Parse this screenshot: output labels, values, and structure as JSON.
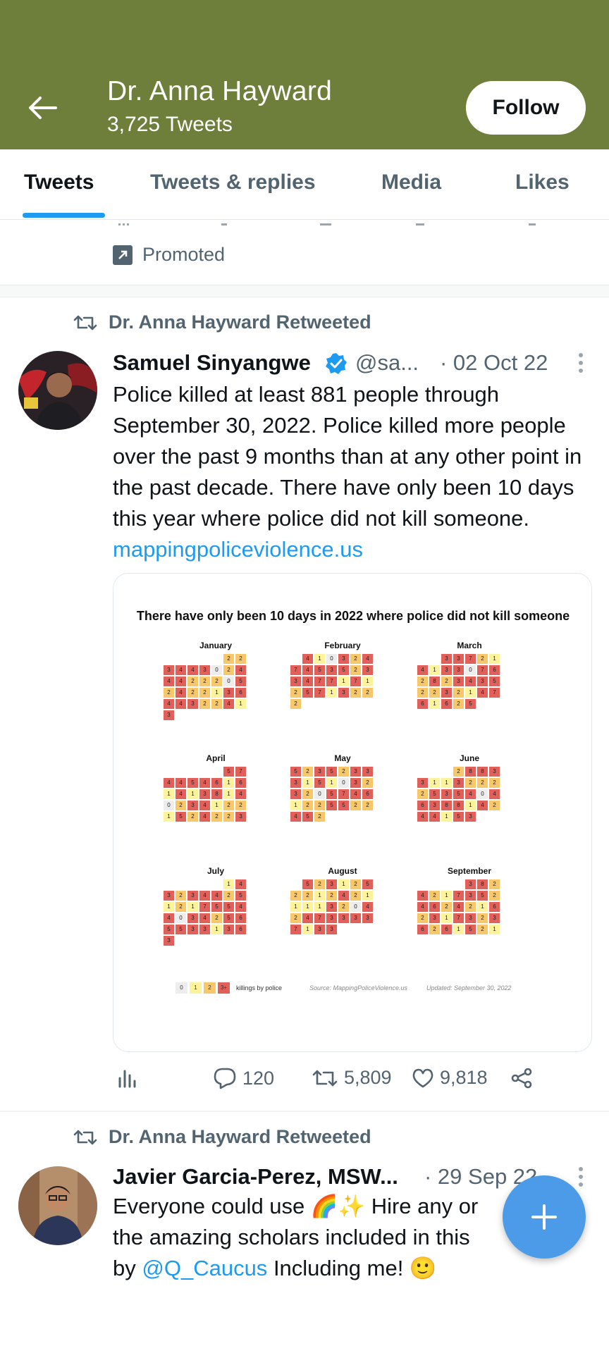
{
  "header": {
    "name": "Dr. Anna Hayward",
    "tweet_count": "3,725 Tweets",
    "follow_label": "Follow"
  },
  "tabs": [
    "Tweets",
    "Tweets & replies",
    "Media",
    "Likes"
  ],
  "promoted_label": "Promoted",
  "tweets": [
    {
      "retweeted_by": "Dr. Anna Hayward Retweeted",
      "name": "Samuel Sinyangwe",
      "verified": true,
      "handle": "@sa...",
      "date": "· 02 Oct 22",
      "text": "Police killed at least 881 people through September 30, 2022. Police killed more people over the past 9 months than at any other point in the past decade. There have only been 10 days this year where police did not kill someone.",
      "link": "mappingpoliceviolence.us",
      "replies": "120",
      "retweets": "5,809",
      "likes": "9,818"
    },
    {
      "retweeted_by": "Dr. Anna Hayward Retweeted",
      "name": "Javier Garcia-Perez, MSW...",
      "date": "· 29 Sep 22",
      "text_part1": "Everyone could use 🌈✨ Hire any or",
      "text_part2": "the amazing scholars included in this",
      "text_part3_prefix": "by",
      "mention": "@Q_Caucus",
      "text_part3_suffix": "Including me! 🙂"
    }
  ],
  "chart_data": {
    "type": "heatmap",
    "title": "There have only been 10 days in 2022 where police did not kill someone",
    "legend": {
      "categories": [
        "0",
        "1",
        "2",
        "3+"
      ],
      "label": "killings by police"
    },
    "source": "Source: MappingPoliceViolence.us",
    "updated": "Updated: September 30, 2022",
    "colors": {
      "0": "#ededed",
      "1": "#fdf39a",
      "2": "#f7c76a",
      "3": "#e2605a"
    },
    "months": [
      {
        "name": "January",
        "start": 5,
        "values": [
          2,
          2,
          3,
          4,
          4,
          3,
          0,
          2,
          4,
          4,
          4,
          2,
          2,
          2,
          0,
          5,
          2,
          4,
          2,
          2,
          1,
          3,
          6,
          4,
          4,
          3,
          2,
          2,
          4,
          1,
          3
        ]
      },
      {
        "name": "February",
        "start": 1,
        "values": [
          4,
          1,
          0,
          3,
          2,
          4,
          7,
          4,
          5,
          3,
          5,
          2,
          3,
          3,
          4,
          7,
          7,
          1,
          7,
          1,
          2,
          5,
          7,
          1,
          3,
          2,
          2,
          2
        ]
      },
      {
        "name": "March",
        "start": 2,
        "values": [
          3,
          3,
          7,
          2,
          1,
          4,
          1,
          3,
          3,
          0,
          7,
          6,
          2,
          8,
          2,
          3,
          4,
          3,
          5,
          2,
          2,
          3,
          2,
          1,
          4,
          7,
          6,
          1,
          6,
          2,
          5
        ]
      },
      {
        "name": "April",
        "start": 5,
        "values": [
          5,
          7,
          4,
          4,
          5,
          4,
          6,
          1,
          6,
          1,
          4,
          1,
          3,
          8,
          1,
          4,
          0,
          2,
          3,
          4,
          1,
          2,
          2,
          1,
          5,
          2,
          4,
          2,
          2,
          3
        ]
      },
      {
        "name": "May",
        "start": 0,
        "values": [
          5,
          2,
          3,
          5,
          2,
          3,
          3,
          3,
          1,
          5,
          1,
          0,
          3,
          2,
          3,
          2,
          0,
          5,
          7,
          4,
          6,
          1,
          2,
          2,
          5,
          5,
          2,
          2,
          4,
          5,
          2
        ]
      },
      {
        "name": "June",
        "start": 3,
        "values": [
          2,
          8,
          8,
          3,
          3,
          1,
          1,
          3,
          2,
          2,
          2,
          2,
          5,
          3,
          5,
          4,
          0,
          4,
          6,
          3,
          8,
          8,
          1,
          4,
          2,
          4,
          4,
          1,
          5,
          3
        ]
      },
      {
        "name": "July",
        "start": 5,
        "values": [
          1,
          4,
          3,
          2,
          3,
          4,
          4,
          2,
          5,
          1,
          2,
          1,
          7,
          5,
          5,
          4,
          4,
          0,
          3,
          4,
          2,
          5,
          6,
          5,
          5,
          3,
          3,
          1,
          3,
          6,
          3
        ]
      },
      {
        "name": "August",
        "start": 1,
        "values": [
          5,
          2,
          3,
          1,
          2,
          5,
          2,
          2,
          1,
          2,
          4,
          2,
          1,
          1,
          1,
          1,
          3,
          2,
          0,
          4,
          2,
          4,
          7,
          3,
          3,
          3,
          3,
          7,
          1,
          3,
          3
        ]
      },
      {
        "name": "September",
        "start": 4,
        "values": [
          3,
          8,
          2,
          4,
          2,
          1,
          7,
          3,
          5,
          2,
          4,
          6,
          2,
          4,
          2,
          1,
          6,
          2,
          3,
          1,
          7,
          3,
          2,
          3,
          6,
          2,
          6,
          1,
          5,
          2,
          1
        ]
      }
    ]
  }
}
